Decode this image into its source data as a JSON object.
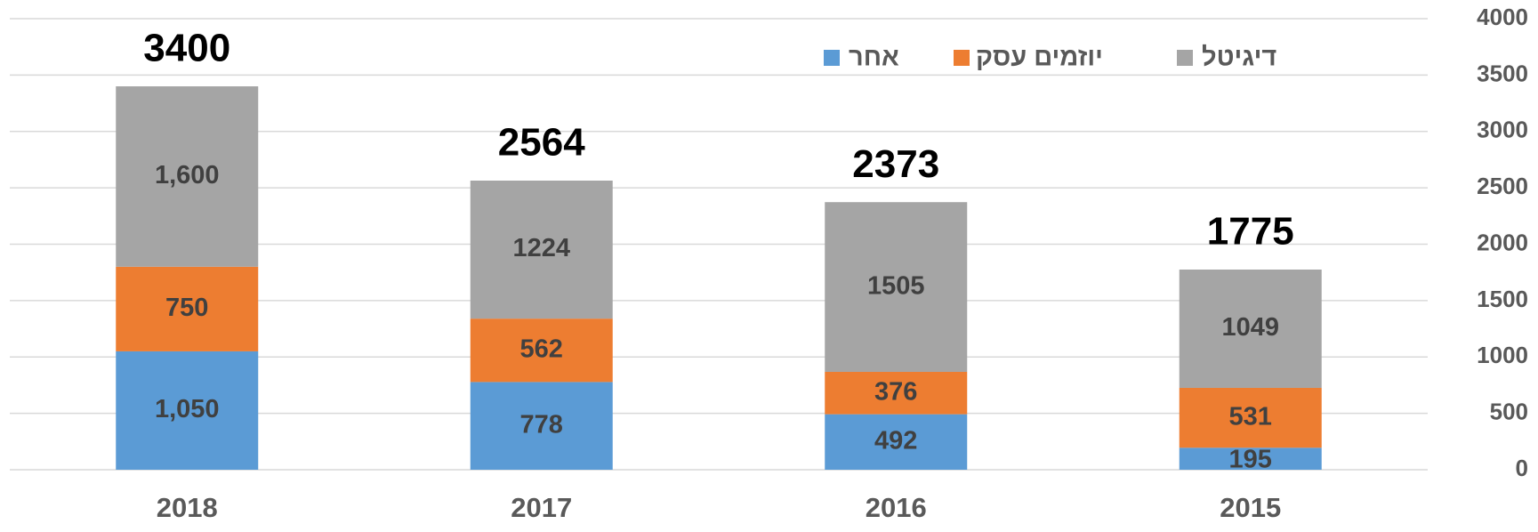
{
  "chart_data": {
    "type": "bar",
    "stacked": true,
    "categories": [
      "2018",
      "2017",
      "2016",
      "2015"
    ],
    "series": [
      {
        "name": "אחר",
        "color": "#5b9bd5",
        "values": [
          1050,
          778,
          492,
          195
        ],
        "value_labels": [
          "1,050",
          "778",
          "492",
          "195"
        ]
      },
      {
        "name": "יוזמים עסק",
        "color": "#ed7d31",
        "values": [
          750,
          562,
          376,
          531
        ]
      },
      {
        "name": "דיגיטל",
        "color": "#a5a5a5",
        "values": [
          1600,
          1224,
          1505,
          1049
        ],
        "value_labels": [
          "1,600",
          "1224",
          "1505",
          "1049"
        ]
      }
    ],
    "total_labels": [
      3400,
      2564,
      2373,
      1775
    ],
    "ylim": [
      0,
      4000
    ],
    "yticks": [
      0,
      500,
      1000,
      1500,
      2000,
      2500,
      3000,
      3500,
      4000
    ],
    "grid": true,
    "y_axis_side": "right",
    "legend": "top"
  }
}
